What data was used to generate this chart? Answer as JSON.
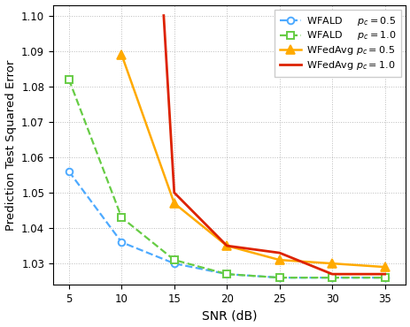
{
  "snr_wfald_05": [
    5,
    10,
    15,
    20,
    25,
    30,
    35
  ],
  "y_wfald_05": [
    1.056,
    1.036,
    1.03,
    1.027,
    1.026,
    1.026,
    1.026
  ],
  "snr_wfald_10": [
    5,
    10,
    15,
    20,
    25,
    30,
    35
  ],
  "y_wfald_10": [
    1.082,
    1.043,
    1.031,
    1.027,
    1.026,
    1.026,
    1.026
  ],
  "snr_wfedavg_05": [
    10,
    15,
    20,
    25,
    30,
    35
  ],
  "y_wfedavg_05": [
    1.089,
    1.047,
    1.035,
    1.031,
    1.03,
    1.029
  ],
  "snr_wfedavg_10": [
    14.0,
    15,
    20,
    25,
    30,
    35
  ],
  "y_wfedavg_10": [
    1.1,
    1.05,
    1.035,
    1.033,
    1.027,
    1.027
  ],
  "color_wfald_05": "#4DAAFF",
  "color_wfald_10": "#66CC44",
  "color_wfedavg_05": "#FFAA00",
  "color_wfedavg_10": "#DD2200",
  "xlabel": "SNR (dB)",
  "ylabel": "Prediction Test Squared Error",
  "xlim": [
    3.5,
    37
  ],
  "ylim": [
    1.024,
    1.103
  ],
  "xticks": [
    5,
    10,
    15,
    20,
    25,
    30,
    35
  ],
  "yticks": [
    1.03,
    1.04,
    1.05,
    1.06,
    1.07,
    1.08,
    1.09,
    1.1
  ],
  "legend_labels": [
    "WFALD     $p_c = 0.5$",
    "WFALD     $p_c = 1.0$",
    "WFedAvg $p_c = 0.5$",
    "WFedAvg $p_c = 1.0$"
  ]
}
